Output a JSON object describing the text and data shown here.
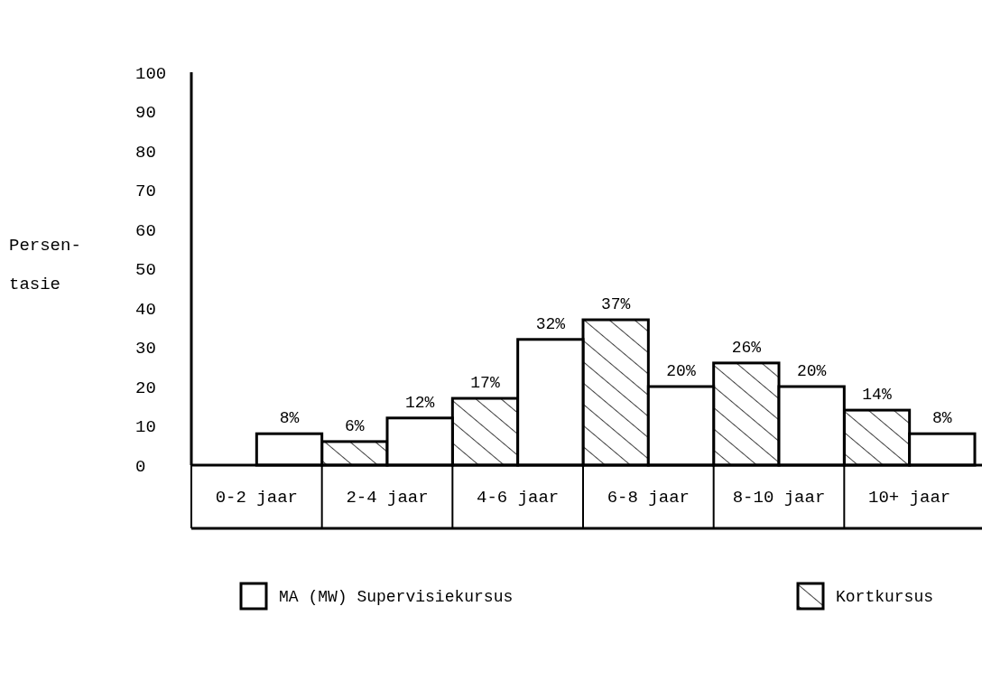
{
  "chart_data": {
    "type": "bar",
    "ylabel": "Persen-\ntasie",
    "categories": [
      "0-2 jaar",
      "2-4 jaar",
      "4-6 jaar",
      "6-8 jaar",
      "8-10 jaar",
      "10+ jaar"
    ],
    "series": [
      {
        "name": "Kortkursus",
        "color": "#000000",
        "values": [
          0,
          6,
          17,
          37,
          26,
          14
        ],
        "value_labels": [
          null,
          "6%",
          "17%",
          "37%",
          "26%",
          "14%"
        ]
      },
      {
        "name": "MA (MW) Supervisiekursus",
        "color": "#ffffff",
        "values": [
          8,
          12,
          32,
          20,
          20,
          8
        ],
        "value_labels": [
          "8%",
          "12%",
          "32%",
          "20%",
          "20%",
          "8%"
        ]
      }
    ],
    "ylim": [
      0,
      100
    ],
    "yticks": [
      0,
      10,
      20,
      30,
      40,
      50,
      60,
      70,
      80,
      90,
      100
    ],
    "grid": false,
    "legend": "bottom"
  }
}
